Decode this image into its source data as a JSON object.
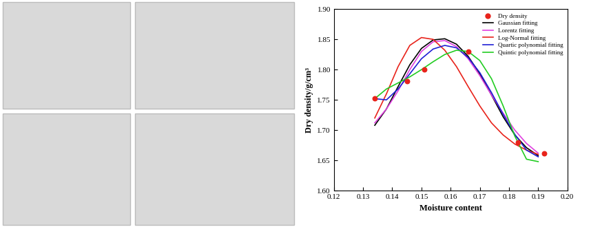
{
  "chart_data": {
    "type": "line",
    "x_label": "Moisture content",
    "y_label": "Dry density/g/cm³",
    "xlim": [
      0.12,
      0.2
    ],
    "xticks": [
      0.12,
      0.13,
      0.14,
      0.15,
      0.16,
      0.17,
      0.18,
      0.19,
      {
        "value": 0.2,
        "label": "0.20"
      }
    ],
    "ylim": [
      1.6,
      1.9
    ],
    "yticks": [
      {
        "value": 1.6,
        "label": "1.60"
      },
      1.65,
      {
        "value": 1.7,
        "label": "1.70"
      },
      1.75,
      {
        "value": 1.8,
        "label": "1.80"
      },
      1.85,
      {
        "value": 1.9,
        "label": "1.90"
      }
    ],
    "legend": "upper right",
    "grid": false,
    "series": [
      {
        "name": "Dry density",
        "type": "scatter",
        "color": "#e8231b",
        "marker": "o",
        "x": [
          0.134,
          0.145,
          0.151,
          0.166,
          0.183,
          0.192
        ],
        "values": [
          1.753,
          1.781,
          1.8,
          1.83,
          1.68,
          1.662
        ]
      },
      {
        "name": "Gaussian fitting",
        "type": "line",
        "color": "#000000",
        "line_style": "solid",
        "x": [
          0.134,
          0.138,
          0.142,
          0.146,
          0.15,
          0.154,
          0.158,
          0.162,
          0.166,
          0.17,
          0.174,
          0.178,
          0.182,
          0.186,
          0.19
        ],
        "values": [
          1.708,
          1.735,
          1.772,
          1.808,
          1.835,
          1.849,
          1.851,
          1.842,
          1.822,
          1.793,
          1.758,
          1.722,
          1.692,
          1.671,
          1.658
        ]
      },
      {
        "name": "Lorentz fitting",
        "type": "line",
        "color": "#e040e0",
        "line_style": "solid",
        "x": [
          0.134,
          0.138,
          0.142,
          0.146,
          0.15,
          0.154,
          0.158,
          0.162,
          0.166,
          0.17,
          0.174,
          0.178,
          0.182,
          0.186,
          0.19
        ],
        "values": [
          1.712,
          1.735,
          1.765,
          1.8,
          1.83,
          1.846,
          1.848,
          1.838,
          1.818,
          1.79,
          1.758,
          1.728,
          1.7,
          1.678,
          1.662
        ]
      },
      {
        "name": "Log-Normal fitting",
        "type": "line",
        "color": "#e8231b",
        "line_style": "solid",
        "x": [
          0.134,
          0.138,
          0.142,
          0.146,
          0.15,
          0.154,
          0.158,
          0.162,
          0.166,
          0.17,
          0.174,
          0.178,
          0.182,
          0.186,
          0.19
        ],
        "values": [
          1.72,
          1.76,
          1.805,
          1.84,
          1.853,
          1.85,
          1.832,
          1.805,
          1.772,
          1.74,
          1.712,
          1.692,
          1.677,
          1.667,
          1.66
        ]
      },
      {
        "name": "Quartic polynomial fitting",
        "type": "line",
        "color": "#1f1fd6",
        "line_style": "solid",
        "x": [
          0.134,
          0.138,
          0.142,
          0.146,
          0.15,
          0.154,
          0.158,
          0.162,
          0.166,
          0.17,
          0.174,
          0.178,
          0.182,
          0.186,
          0.19
        ],
        "values": [
          1.752,
          1.75,
          1.768,
          1.793,
          1.818,
          1.834,
          1.84,
          1.836,
          1.82,
          1.795,
          1.762,
          1.726,
          1.693,
          1.667,
          1.656
        ]
      },
      {
        "name": "Quintic polynomial fitting",
        "type": "line",
        "color": "#22cc22",
        "line_style": "solid",
        "x": [
          0.134,
          0.138,
          0.142,
          0.146,
          0.15,
          0.154,
          0.158,
          0.162,
          0.166,
          0.17,
          0.174,
          0.178,
          0.182,
          0.186,
          0.19
        ],
        "values": [
          1.752,
          1.768,
          1.778,
          1.788,
          1.8,
          1.813,
          1.825,
          1.832,
          1.83,
          1.815,
          1.785,
          1.74,
          1.69,
          1.652,
          1.648
        ]
      }
    ]
  }
}
